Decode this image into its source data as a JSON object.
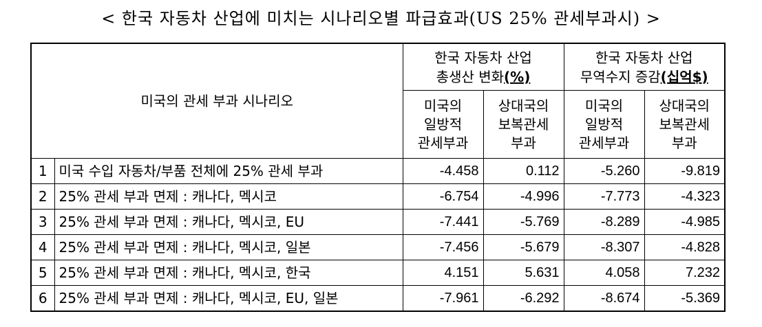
{
  "title": "< 한국 자동차 산업에 미치는 시나리오별 파급효과(US 25% 관세부과시) >",
  "table": {
    "scenario_header": "미국의 관세 부과 시나리오",
    "groups": [
      {
        "line1": "한국 자동차 산업",
        "line2": "총생산 변화",
        "unit": "(%)"
      },
      {
        "line1": "한국 자동차 산업",
        "line2": "무역수지 증감",
        "unit": "(십억$)"
      }
    ],
    "sub_headers": [
      {
        "lines": [
          "미국의",
          "일방적",
          "관세부과"
        ]
      },
      {
        "lines": [
          "상대국의",
          "보복관세",
          "부과"
        ]
      },
      {
        "lines": [
          "미국의",
          "일방적",
          "관세부과"
        ]
      },
      {
        "lines": [
          "상대국의",
          "보복관세",
          "부과"
        ]
      }
    ],
    "rows": [
      {
        "no": "1",
        "scenario": "미국 수입 자동차/부품 전체에 25% 관세 부과",
        "values": [
          "-4.458",
          "0.112",
          "-5.260",
          "-9.819"
        ]
      },
      {
        "no": "2",
        "scenario": "25% 관세 부과 면제 : 캐나다, 멕시코",
        "values": [
          "-6.754",
          "-4.996",
          "-7.773",
          "-4.323"
        ]
      },
      {
        "no": "3",
        "scenario": "25% 관세 부과 면제 : 캐나다, 멕시코, EU",
        "values": [
          "-7.441",
          "-5.769",
          "-8.289",
          "-4.985"
        ]
      },
      {
        "no": "4",
        "scenario": "25% 관세 부과 면제 : 캐나다, 멕시코, 일본",
        "values": [
          "-7.456",
          "-5.679",
          "-8.307",
          "-4.828"
        ]
      },
      {
        "no": "5",
        "scenario": "25% 관세 부과 면제 : 캐나다, 멕시코, 한국",
        "values": [
          "4.151",
          "5.631",
          "4.058",
          "7.232"
        ]
      },
      {
        "no": "6",
        "scenario": "25% 관세 부과 면제 : 캐나다, 멕시코, EU, 일본",
        "values": [
          "-7.961",
          "-6.292",
          "-8.674",
          "-5.369"
        ]
      }
    ]
  }
}
